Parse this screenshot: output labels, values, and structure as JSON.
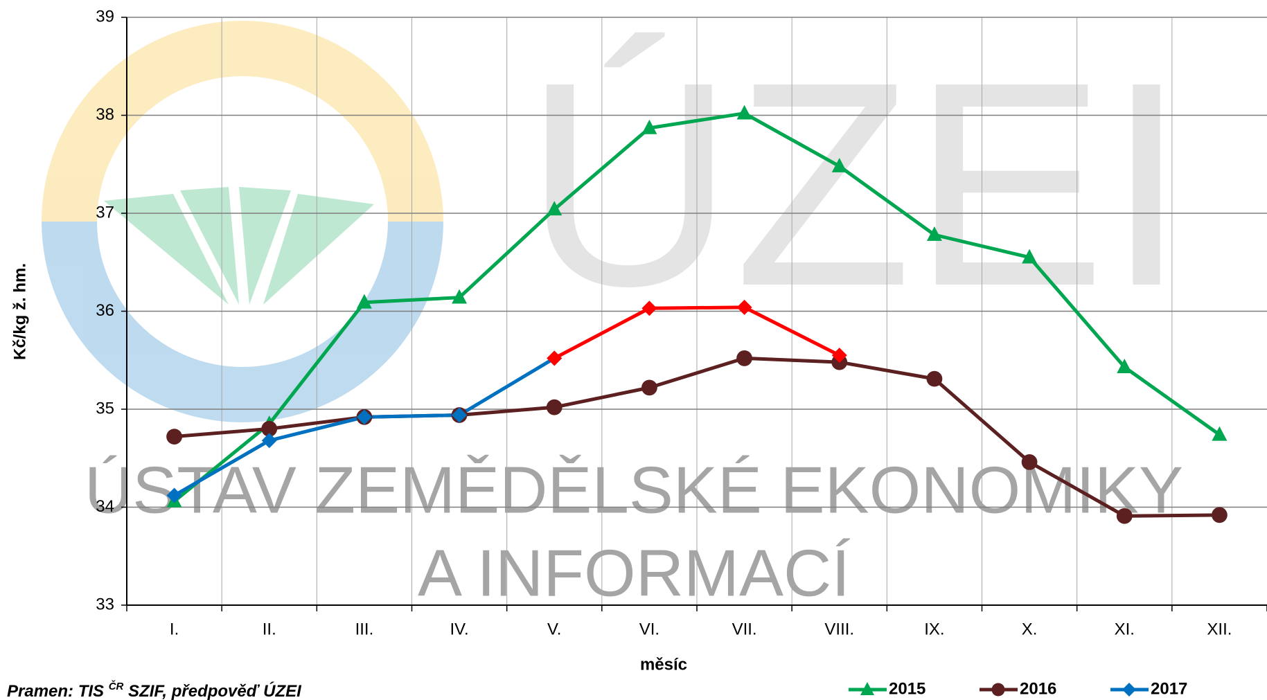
{
  "chart_data": {
    "type": "line",
    "y_label": "Kč/kg ž. hm.",
    "x_label": "měsíc",
    "source": [
      "Pramen: TIS ",
      "ČR",
      " SZIF, předpověď ÚZEI"
    ],
    "watermark": [
      "ÚZEI",
      "ÚSTAV ZEMĚDĚLSKÉ EKONOMIKY",
      "A INFORMACÍ"
    ],
    "categories": [
      "I.",
      "II.",
      "III.",
      "IV.",
      "V.",
      "VI.",
      "VII.",
      "VIII.",
      "IX.",
      "X.",
      "XI.",
      "XII."
    ],
    "ylim": [
      33,
      39
    ],
    "yticks": [
      33,
      34,
      35,
      36,
      37,
      38,
      39
    ],
    "grid": true,
    "legend": "bottom-right",
    "series": [
      {
        "name": "2015",
        "color": "#00a650",
        "marker": "triangle",
        "values": [
          34.06,
          34.85,
          36.09,
          36.14,
          37.04,
          37.87,
          38.02,
          37.48,
          36.78,
          36.55,
          35.43,
          34.74
        ]
      },
      {
        "name": "2016",
        "color": "#5c2020",
        "marker": "circle",
        "values": [
          34.72,
          34.8,
          34.92,
          34.94,
          35.02,
          35.22,
          35.52,
          35.48,
          35.31,
          34.46,
          33.91,
          33.92
        ]
      },
      {
        "name": "2017",
        "color": "#0070c0",
        "marker": "diamond",
        "values": [
          34.12,
          34.68,
          34.92,
          34.94,
          35.52,
          null,
          null,
          null,
          null,
          null,
          null,
          null
        ]
      },
      {
        "color": "#ff0000",
        "marker": "diamond",
        "values": [
          null,
          null,
          null,
          null,
          35.52,
          36.03,
          36.04,
          35.55,
          null,
          null,
          null,
          null
        ]
      }
    ]
  }
}
